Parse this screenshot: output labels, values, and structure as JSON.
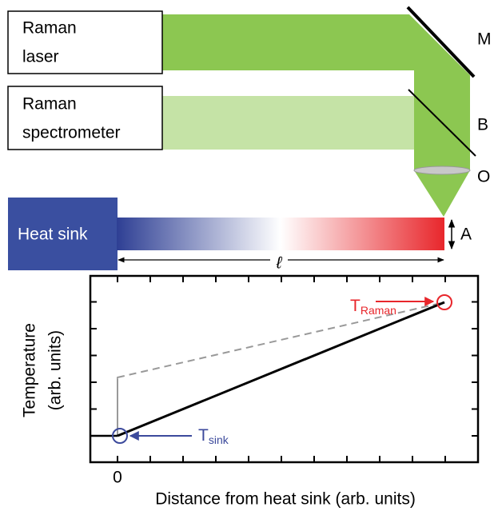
{
  "boxes": [
    {
      "lines": [
        "Raman",
        "laser"
      ]
    },
    {
      "lines": [
        "Raman",
        "spectrometer"
      ]
    }
  ],
  "labels": {
    "mirror": "M",
    "beamsplitter": "B",
    "objective": "O",
    "spot": "A"
  },
  "heat_sink": "Heat sink",
  "length": "ℓ",
  "plot": {
    "y_label": [
      "Temperature",
      "(arb. units)"
    ],
    "x_label": "Distance from heat sink (arb. units)",
    "x_tick": "0",
    "t_raman": {
      "base": "T",
      "sub": "Raman"
    },
    "t_sink": {
      "base": "T",
      "sub": "sink"
    }
  }
}
